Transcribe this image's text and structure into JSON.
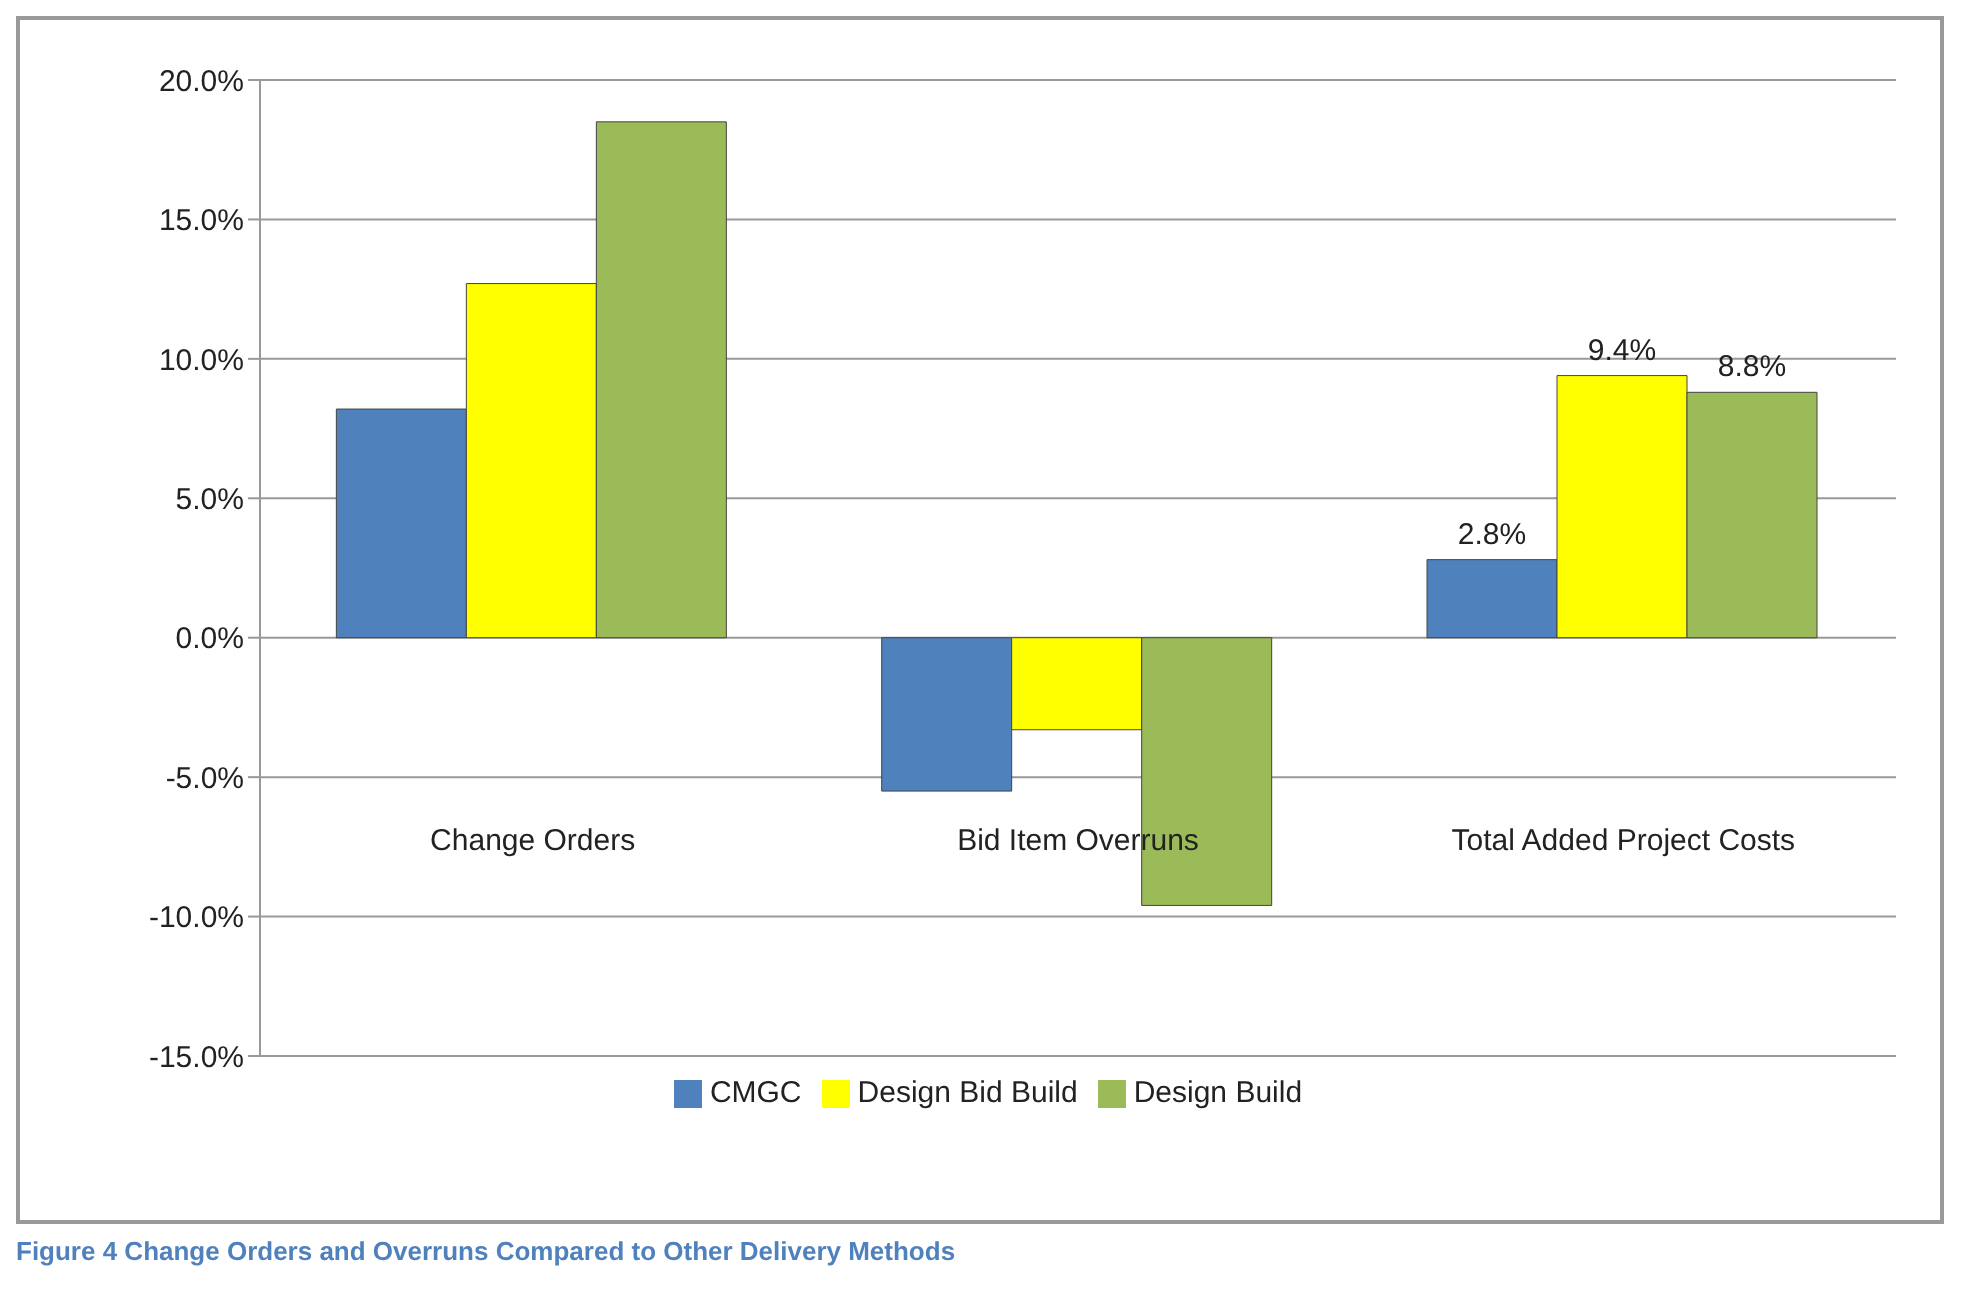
{
  "chart_data": {
    "type": "bar",
    "categories": [
      "Change Orders",
      "Bid Item Overruns",
      "Total Added Project Costs"
    ],
    "series": [
      {
        "name": "CMGC",
        "color": "#4f81bd",
        "values": [
          8.2,
          -5.5,
          2.8
        ],
        "value_labels": [
          null,
          null,
          "2.8%"
        ]
      },
      {
        "name": "Design Bid Build",
        "color": "#ffff00",
        "values": [
          12.7,
          -3.3,
          9.4
        ],
        "value_labels": [
          null,
          null,
          "9.4%"
        ]
      },
      {
        "name": "Design Build",
        "color": "#9bbb59",
        "values": [
          18.5,
          -9.6,
          8.8
        ],
        "value_labels": [
          null,
          null,
          "8.8%"
        ]
      }
    ],
    "ylim": [
      -15,
      20
    ],
    "yticks": [
      {
        "value": -15,
        "label": "-15.0%"
      },
      {
        "value": -10,
        "label": "-10.0%"
      },
      {
        "value": -5,
        "label": "-5.0%"
      },
      {
        "value": 0,
        "label": "0.0%"
      },
      {
        "value": 5,
        "label": "5.0%"
      },
      {
        "value": 10,
        "label": "10.0%"
      },
      {
        "value": 15,
        "label": "15.0%"
      },
      {
        "value": 20,
        "label": "20.0%"
      }
    ],
    "grid": "y",
    "legend": "bottom",
    "annotations": [
      "Figure 4 Change Orders and Overruns Compared to Other Delivery Methods"
    ]
  }
}
